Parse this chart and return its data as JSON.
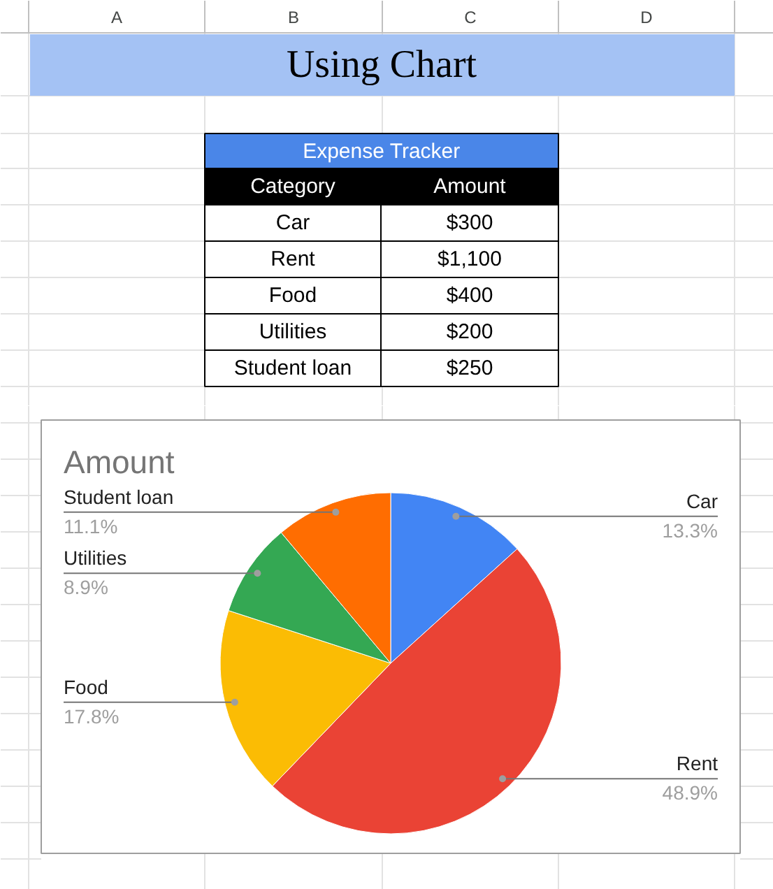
{
  "chart_data": [
    {
      "type": "other",
      "title": "Using Chart",
      "subtitle": "Expense Tracker",
      "annotations": [
        "A",
        "B",
        "C",
        "D",
        "Category",
        "Amount",
        "Car",
        "$300",
        "Rent",
        "$1,100",
        "Food",
        "$400",
        "Utilities",
        "$200",
        "Student loan",
        "$250"
      ]
    },
    {
      "type": "pie",
      "title": "Amount",
      "categories": [
        "Car",
        "Rent",
        "Food",
        "Utilities",
        "Student loan"
      ],
      "values": [
        13.3,
        48.9,
        17.8,
        8.9,
        11.1
      ],
      "colors": [
        "#4285f4",
        "#ea4335",
        "#fbbc04",
        "#34a853",
        "#ff6d01"
      ],
      "value_labels": [
        "13.3%",
        "48.9%",
        "17.8%",
        "8.9%",
        "11.1%"
      ]
    }
  ]
}
